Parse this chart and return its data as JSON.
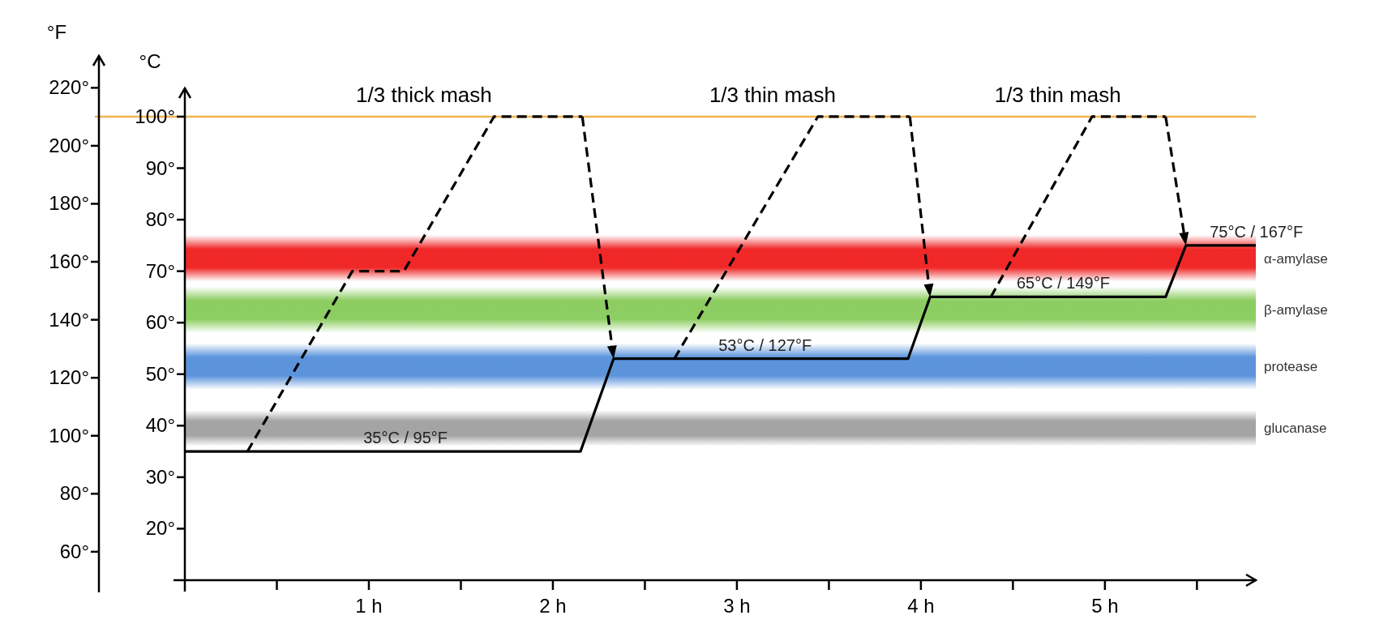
{
  "chart_data": {
    "type": "line",
    "ylabel": "°C",
    "y2label": "°F",
    "xlim": [
      0,
      5.82
    ],
    "xticks": [
      {
        "value": 0.5,
        "label": null
      },
      {
        "value": 1,
        "label": "1 h"
      },
      {
        "value": 1.5,
        "label": null
      },
      {
        "value": 2,
        "label": "2 h"
      },
      {
        "value": 2.5,
        "label": null
      },
      {
        "value": 3,
        "label": "3 h"
      },
      {
        "value": 3.5,
        "label": null
      },
      {
        "value": 4,
        "label": "4 h"
      },
      {
        "value": 4.5,
        "label": null
      },
      {
        "value": 5,
        "label": "5 h"
      },
      {
        "value": 5.5,
        "label": null
      }
    ],
    "ylim": [
      10,
      105.5
    ],
    "yticks": [
      {
        "value": 20,
        "label": "20°"
      },
      {
        "value": 30,
        "label": "30°"
      },
      {
        "value": 40,
        "label": "40°"
      },
      {
        "value": 50,
        "label": "50°"
      },
      {
        "value": 60,
        "label": "60°"
      },
      {
        "value": 70,
        "label": "70°"
      },
      {
        "value": 80,
        "label": "80°"
      },
      {
        "value": 90,
        "label": "90°"
      },
      {
        "value": 100,
        "label": "100°"
      }
    ],
    "y2lim": [
      46,
      231
    ],
    "y2ticks": [
      {
        "value": 60,
        "label": "60°"
      },
      {
        "value": 80,
        "label": "80°"
      },
      {
        "value": 100,
        "label": "100°"
      },
      {
        "value": 120,
        "label": "120°"
      },
      {
        "value": 140,
        "label": "140°"
      },
      {
        "value": 160,
        "label": "160°"
      },
      {
        "value": 180,
        "label": "180°"
      },
      {
        "value": 200,
        "label": "200°"
      },
      {
        "value": 220,
        "label": "220°"
      }
    ],
    "series": [
      {
        "color": "#000000",
        "line_style": "solid",
        "x": [
          0,
          2.15,
          2.33,
          3.93,
          4.05,
          5.33,
          5.44,
          5.82
        ],
        "values": [
          35,
          35,
          53,
          53,
          65,
          65,
          75,
          75
        ]
      },
      {
        "color": "#000000",
        "line_style": "dashed",
        "x": [
          0.34,
          0.91,
          1.19,
          1.68,
          2.16
        ],
        "values": [
          35,
          70,
          70,
          100,
          100
        ]
      },
      {
        "color": "#000000",
        "line_style": "dashed",
        "x": [
          2.66,
          3.44,
          3.94
        ],
        "values": [
          53,
          100,
          100
        ]
      },
      {
        "color": "#000000",
        "line_style": "dashed",
        "x": [
          4.38,
          4.93,
          5.33
        ],
        "values": [
          65,
          100,
          100
        ]
      }
    ],
    "marker": "none",
    "grid": false,
    "legend": false,
    "ref_lines": [
      {
        "axis": "y",
        "value": 100,
        "color": "#f0b450"
      }
    ],
    "bands": [
      {
        "axis": "y",
        "from": 68,
        "to": 77,
        "label": "α-amylase",
        "color": "#ee1010"
      },
      {
        "axis": "y",
        "from": 58,
        "to": 67,
        "label": "β-amylase",
        "color": "#80c850"
      },
      {
        "axis": "y",
        "from": 47,
        "to": 56,
        "label": "protease",
        "color": "#4a88d8"
      },
      {
        "axis": "y",
        "from": 36,
        "to": 43,
        "label": "glucanase",
        "color": "#9a9a9a"
      }
    ],
    "annotations": [
      {
        "text": "1/3 thick mash",
        "x": 0.93,
        "y": 100
      },
      {
        "text": "1/3 thin mash",
        "x": 2.85,
        "y": 100
      },
      {
        "text": "1/3 thin mash",
        "x": 4.4,
        "y": 100
      },
      {
        "text": "35°C / 95°F",
        "x": 0.97,
        "y": 35
      },
      {
        "text": "53°C / 127°F",
        "x": 2.9,
        "y": 53
      },
      {
        "text": "65°C / 149°F",
        "x": 4.52,
        "y": 65
      },
      {
        "text": "75°C / 167°F",
        "x": 5.57,
        "y": 75
      }
    ]
  }
}
